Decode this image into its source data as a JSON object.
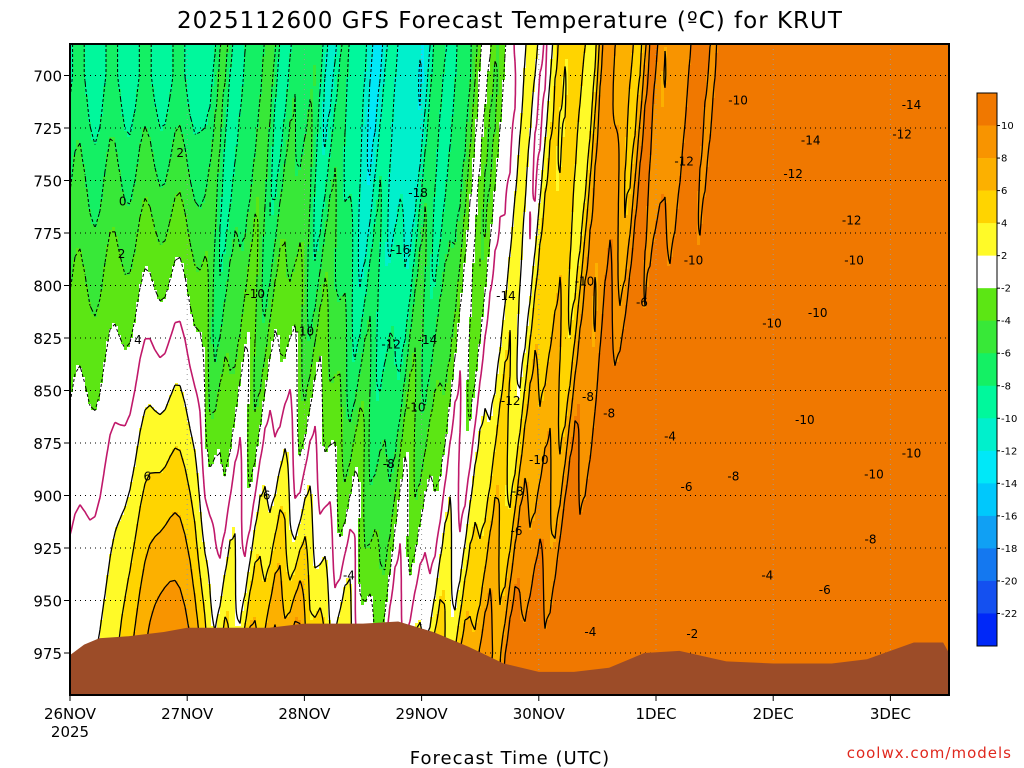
{
  "chart_data": {
    "type": "heatmap",
    "title": "2025112600 GFS Forecast Temperature (ºC) for KRUT",
    "xlabel": "Forecast Time (UTC)",
    "ylabel": "",
    "credit": "coolwx.com/models",
    "x_ticks": [
      {
        "day": 0,
        "label": "26NOV",
        "sub": "2025"
      },
      {
        "day": 1,
        "label": "27NOV"
      },
      {
        "day": 2,
        "label": "28NOV"
      },
      {
        "day": 3,
        "label": "29NOV"
      },
      {
        "day": 4,
        "label": "30NOV"
      },
      {
        "day": 5,
        "label": "1DEC"
      },
      {
        "day": 6,
        "label": "2DEC"
      },
      {
        "day": 7,
        "label": "3DEC"
      }
    ],
    "xlim_days": [
      0,
      7.5
    ],
    "y_ticks": [
      700,
      725,
      750,
      775,
      800,
      825,
      850,
      875,
      900,
      925,
      950,
      975
    ],
    "ylim": [
      685,
      995
    ],
    "colorbar": {
      "labels": [
        "10",
        "8",
        "6",
        "4",
        "2",
        "-2",
        "-4",
        "-6",
        "-8",
        "-10",
        "-12",
        "-14",
        "-16",
        "-18",
        "-20",
        "-22"
      ],
      "bands": [
        {
          "low": 10,
          "high": 12,
          "color": "#f07800"
        },
        {
          "low": 8,
          "high": 10,
          "color": "#f89400"
        },
        {
          "low": 6,
          "high": 8,
          "color": "#fcb000"
        },
        {
          "low": 4,
          "high": 6,
          "color": "#ffd400"
        },
        {
          "low": 2,
          "high": 4,
          "color": "#fffa28"
        },
        {
          "low": -2,
          "high": 2,
          "color": "#ffffff"
        },
        {
          "low": -4,
          "high": -2,
          "color": "#5ce614"
        },
        {
          "low": -6,
          "high": -4,
          "color": "#38e838"
        },
        {
          "low": -8,
          "high": -6,
          "color": "#14f064"
        },
        {
          "low": -10,
          "high": -8,
          "color": "#00f89c"
        },
        {
          "low": -12,
          "high": -10,
          "color": "#00f0cc"
        },
        {
          "low": -14,
          "high": -12,
          "color": "#00e8f8"
        },
        {
          "low": -16,
          "high": -14,
          "color": "#00c8fc"
        },
        {
          "low": -18,
          "high": -16,
          "color": "#10a0f4"
        },
        {
          "low": -20,
          "high": -18,
          "color": "#1478f0"
        },
        {
          "low": -22,
          "high": -20,
          "color": "#1450f0"
        },
        {
          "low": -24,
          "high": -22,
          "color": "#0028f8"
        }
      ]
    },
    "terrain_color": "#9c4c28",
    "grid": true,
    "contour_labels": [
      {
        "text": "2",
        "day": 0.94,
        "p": 737
      },
      {
        "text": "0",
        "day": 0.45,
        "p": 760
      },
      {
        "text": "2",
        "day": 0.44,
        "p": 785
      },
      {
        "text": "4",
        "day": 0.58,
        "p": 826
      },
      {
        "text": "6",
        "day": 0.66,
        "p": 891
      },
      {
        "text": "-10",
        "day": 1.58,
        "p": 804
      },
      {
        "text": "-6",
        "day": 1.66,
        "p": 900
      },
      {
        "text": "-10",
        "day": 2.0,
        "p": 822
      },
      {
        "text": "-4",
        "day": 2.38,
        "p": 938
      },
      {
        "text": "-8",
        "day": 2.72,
        "p": 885
      },
      {
        "text": "-10",
        "day": 2.95,
        "p": 858
      },
      {
        "text": "-12",
        "day": 2.74,
        "p": 828
      },
      {
        "text": "-14",
        "day": 3.05,
        "p": 826
      },
      {
        "text": "-16",
        "day": 2.82,
        "p": 783
      },
      {
        "text": "-18",
        "day": 2.97,
        "p": 756
      },
      {
        "text": "-14",
        "day": 3.72,
        "p": 805
      },
      {
        "text": "-12",
        "day": 3.76,
        "p": 855
      },
      {
        "text": "-10",
        "day": 4.0,
        "p": 883
      },
      {
        "text": "-8",
        "day": 3.82,
        "p": 898
      },
      {
        "text": "-6",
        "day": 3.81,
        "p": 917
      },
      {
        "text": "-4",
        "day": 4.44,
        "p": 965
      },
      {
        "text": "-10",
        "day": 4.39,
        "p": 798
      },
      {
        "text": "-8",
        "day": 4.42,
        "p": 853
      },
      {
        "text": "-8",
        "day": 4.6,
        "p": 861
      },
      {
        "text": "-6",
        "day": 4.88,
        "p": 808
      },
      {
        "text": "-4",
        "day": 5.12,
        "p": 872
      },
      {
        "text": "-6",
        "day": 5.26,
        "p": 896
      },
      {
        "text": "-2",
        "day": 5.31,
        "p": 966
      },
      {
        "text": "-10",
        "day": 5.32,
        "p": 788
      },
      {
        "text": "-12",
        "day": 5.24,
        "p": 741
      },
      {
        "text": "-10",
        "day": 5.7,
        "p": 712
      },
      {
        "text": "-8",
        "day": 5.66,
        "p": 891
      },
      {
        "text": "-4",
        "day": 5.95,
        "p": 938
      },
      {
        "text": "-10",
        "day": 5.99,
        "p": 818
      },
      {
        "text": "-12",
        "day": 6.17,
        "p": 747
      },
      {
        "text": "-14",
        "day": 6.32,
        "p": 731
      },
      {
        "text": "-10",
        "day": 6.27,
        "p": 864
      },
      {
        "text": "-6",
        "day": 6.44,
        "p": 945
      },
      {
        "text": "-10",
        "day": 6.38,
        "p": 813
      },
      {
        "text": "-12",
        "day": 6.67,
        "p": 769
      },
      {
        "text": "-10",
        "day": 6.69,
        "p": 788
      },
      {
        "text": "-8",
        "day": 6.83,
        "p": 921
      },
      {
        "text": "-10",
        "day": 6.86,
        "p": 890
      },
      {
        "text": "-10",
        "day": 7.18,
        "p": 880
      },
      {
        "text": "-12",
        "day": 7.1,
        "p": 728
      },
      {
        "text": "-14",
        "day": 7.18,
        "p": 714
      }
    ]
  }
}
